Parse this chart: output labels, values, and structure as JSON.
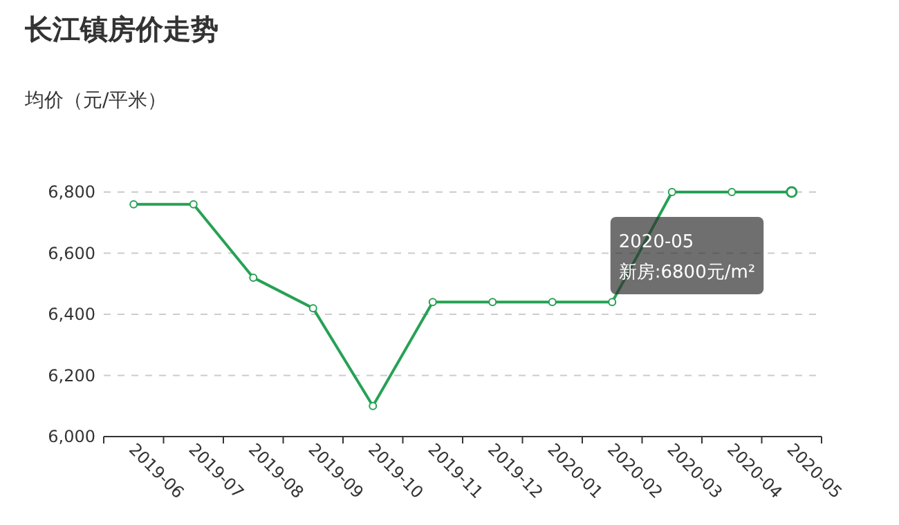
{
  "chart_data": {
    "type": "line",
    "title": "长江镇房价走势",
    "ylabel": "均价（元/平米）",
    "categories": [
      "2019-06",
      "2019-07",
      "2019-08",
      "2019-09",
      "2019-10",
      "2019-11",
      "2019-12",
      "2020-01",
      "2020-02",
      "2020-03",
      "2020-04",
      "2020-05"
    ],
    "series": [
      {
        "color": "#27a155",
        "values": [
          6760,
          6760,
          6520,
          6420,
          6100,
          6440,
          6440,
          6440,
          6440,
          6800,
          6800,
          6800
        ]
      }
    ],
    "ylim": [
      6000,
      6800
    ],
    "yticks": [
      {
        "value": 6000,
        "label": "6,000"
      },
      {
        "value": 6200,
        "label": "6,200"
      },
      {
        "value": 6400,
        "label": "6,400"
      },
      {
        "value": 6600,
        "label": "6,600"
      },
      {
        "value": 6800,
        "label": "6,800"
      }
    ],
    "grid": "y",
    "marker": "circle",
    "line_style": "solid",
    "annotations": [
      {
        "text": "2020-05\n新房:6800元/m²",
        "x": "2020-05",
        "y": 6800
      }
    ]
  }
}
